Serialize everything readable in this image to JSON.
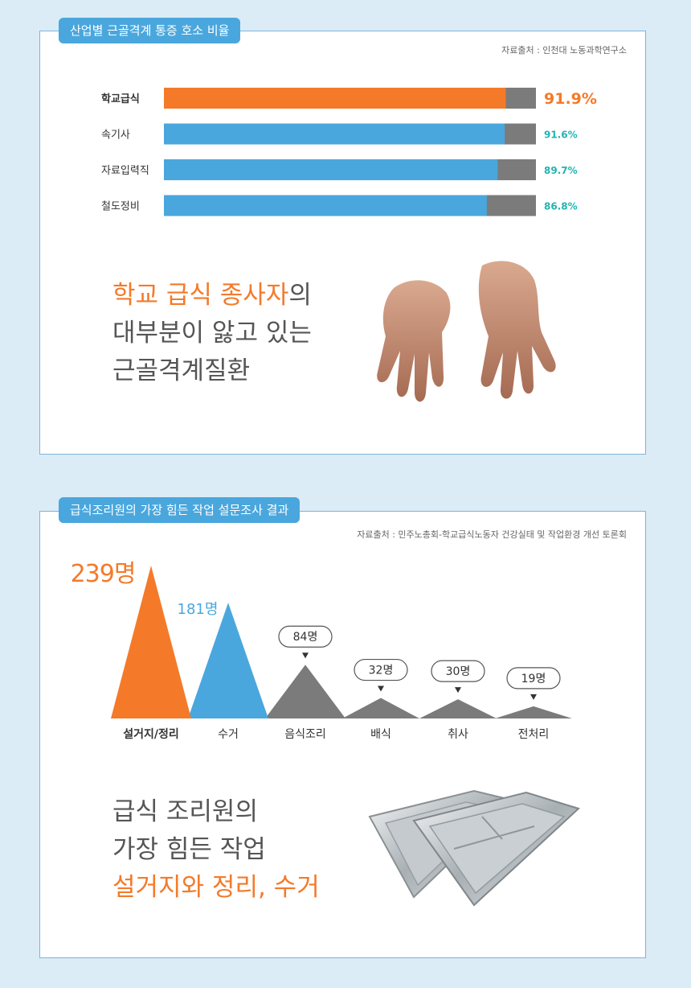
{
  "section1": {
    "tab_title": "산업별 근골격계 통증 호소 비율",
    "source": "자료출처 : 인천대 노동과학연구소",
    "headline": {
      "line1_highlight": "학교 급식 종사자",
      "line1_rest": "의",
      "line2": "대부분이 앓고 있는",
      "line3": "근골격계질환"
    }
  },
  "section2": {
    "tab_title": "급식조리원의 가장 힘든 작업 설문조사 결과",
    "source": "자료출처 : 민주노총회-학교급식노동자 건강실태 및 작업환경 개선 토론회",
    "headline": {
      "line1": "급식 조리원의",
      "line2": "가장 힘든 작업",
      "line3_highlight": "설거지와 정리, 수거"
    }
  },
  "colors": {
    "orange": "#f47a2a",
    "blue": "#4aa7dd",
    "gray": "#7b7b7b",
    "teal": "#23b3b3"
  },
  "chart_data": [
    {
      "type": "bar",
      "orientation": "horizontal",
      "categories": [
        "학교급식",
        "속기사",
        "자료입력직",
        "철도정비"
      ],
      "values": [
        91.9,
        91.6,
        89.7,
        86.8
      ],
      "value_labels": [
        "91.9%",
        "91.6%",
        "89.7%",
        "86.8%"
      ],
      "xlim": [
        0,
        100
      ],
      "highlight_index": 0
    },
    {
      "type": "area",
      "style": "triangle-peaks",
      "categories": [
        "설거지/정리",
        "수거",
        "음식조리",
        "배식",
        "취사",
        "전처리"
      ],
      "values": [
        239,
        181,
        84,
        32,
        30,
        19
      ],
      "value_labels": [
        "239명",
        "181명",
        "84명",
        "32명",
        "30명",
        "19명"
      ],
      "ylim": [
        0,
        239
      ]
    }
  ]
}
